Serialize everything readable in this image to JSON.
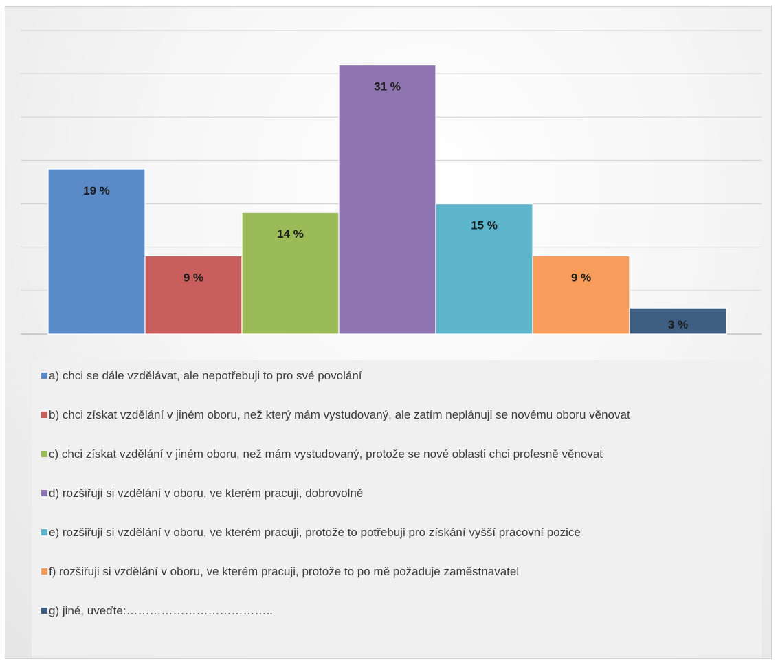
{
  "chart_data": {
    "type": "bar",
    "title": "",
    "xlabel": "",
    "ylabel": "",
    "ylim": [
      0,
      35
    ],
    "gridlines": true,
    "legend_position": "bottom",
    "series": [
      {
        "name": "a) chci se dále vzdělávat, ale nepotřebuji to pro své povolání",
        "value": 19,
        "label": "19 %",
        "color": "#5b8ac8"
      },
      {
        "name": "b) chci získat vzdělání v jiném oboru, než který mám vystudovaný, ale zatím neplánuji se novému oboru věnovat",
        "value": 9,
        "label": "9 %",
        "color": "#c85f5c"
      },
      {
        "name": "c) chci získat vzdělání v jiném oboru, než mám vystudovaný, protože se nové oblasti chci profesně věnovat",
        "value": 14,
        "label": "14 %",
        "color": "#9bbb59"
      },
      {
        "name": "d) rozšiřuji si vzdělání v oboru, ve kterém pracuji, dobrovolně",
        "value": 31,
        "label": "31 %",
        "color": "#8e74b0"
      },
      {
        "name": "e) rozšiřuji si vzdělání v oboru, ve kterém pracuji, protože to potřebuji pro získání vyšší pracovní pozice",
        "value": 15,
        "label": "15 %",
        "color": "#5eb6cd"
      },
      {
        "name": "f) rozšiřuji si vzdělání v oboru, ve kterém pracuji, protože to po mě požaduje zaměstnavatel",
        "value": 9,
        "label": "9 %",
        "color": "#f79c5a"
      },
      {
        "name": "g) jiné, uveďte:………………………………..",
        "value": 3,
        "label": "3 %",
        "color": "#3f5f82"
      }
    ]
  }
}
